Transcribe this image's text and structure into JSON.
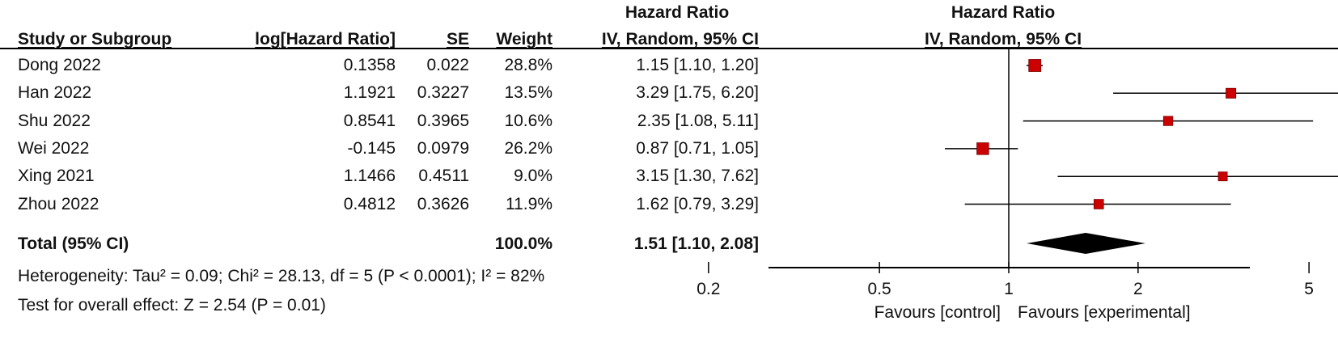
{
  "table": {
    "group_header_left": "Hazard Ratio",
    "group_header_right": "Hazard Ratio",
    "columns": {
      "study": "Study or Subgroup",
      "log_hr": "log[Hazard Ratio]",
      "se": "SE",
      "weight": "Weight",
      "ci_method": "IV, Random, 95% CI",
      "ci_method_plot": "IV, Random, 95% CI"
    },
    "rows": [
      {
        "study": "Dong 2022",
        "log_hr": "0.1358",
        "se": "0.022",
        "weight": "28.8%",
        "ci": "1.15 [1.10, 1.20]"
      },
      {
        "study": "Han 2022",
        "log_hr": "1.1921",
        "se": "0.3227",
        "weight": "13.5%",
        "ci": "3.29 [1.75, 6.20]"
      },
      {
        "study": "Shu 2022",
        "log_hr": "0.8541",
        "se": "0.3965",
        "weight": "10.6%",
        "ci": "2.35 [1.08, 5.11]"
      },
      {
        "study": "Wei 2022",
        "log_hr": "-0.145",
        "se": "0.0979",
        "weight": "26.2%",
        "ci": "0.87 [0.71, 1.05]"
      },
      {
        "study": "Xing 2021",
        "log_hr": "1.1466",
        "se": "0.4511",
        "weight": "9.0%",
        "ci": "3.15 [1.30, 7.62]"
      },
      {
        "study": "Zhou 2022",
        "log_hr": "0.4812",
        "se": "0.3626",
        "weight": "11.9%",
        "ci": "1.62 [0.79, 3.29]"
      }
    ],
    "total": {
      "label": "Total (95% CI)",
      "weight": "100.0%",
      "ci": "1.51 [1.10, 2.08]"
    },
    "heterogeneity": "Heterogeneity: Tau² = 0.09; Chi² = 28.13, df = 5 (P < 0.0001); I² = 82%",
    "overall_effect": "Test for overall effect: Z = 2.54 (P = 0.01)"
  },
  "chart_data": {
    "type": "forest",
    "x_scale": "log",
    "x_ticks": [
      0.2,
      0.5,
      1,
      2,
      5
    ],
    "x_tick_labels": [
      "0.2",
      "0.5",
      "1",
      "2",
      "5"
    ],
    "xlim": [
      0.1,
      10
    ],
    "null_value": 1,
    "studies": [
      {
        "hr": 1.15,
        "lower": 1.1,
        "upper": 1.2,
        "weight": 28.8
      },
      {
        "hr": 3.29,
        "lower": 1.75,
        "upper": 6.2,
        "weight": 13.5
      },
      {
        "hr": 2.35,
        "lower": 1.08,
        "upper": 5.11,
        "weight": 10.6
      },
      {
        "hr": 0.87,
        "lower": 0.71,
        "upper": 1.05,
        "weight": 26.2
      },
      {
        "hr": 3.15,
        "lower": 1.3,
        "upper": 7.62,
        "weight": 9.0
      },
      {
        "hr": 1.62,
        "lower": 0.79,
        "upper": 3.29,
        "weight": 11.9
      }
    ],
    "pooled": {
      "hr": 1.51,
      "lower": 1.1,
      "upper": 2.08
    },
    "favours_left": "Favours [control]",
    "favours_right": "Favours [experimental]",
    "marker_color": "#cc0000",
    "diamond_color": "#000000"
  }
}
